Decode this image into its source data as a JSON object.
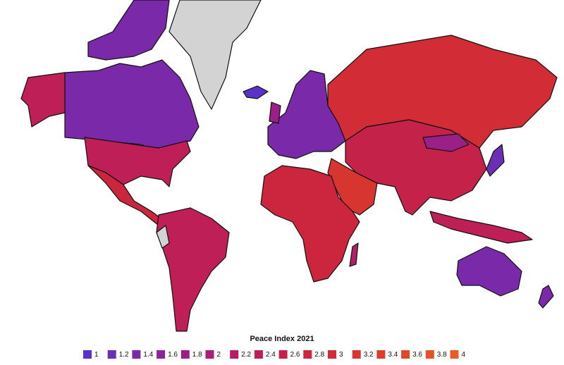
{
  "legend": {
    "title": "Peace Index 2021",
    "items": [
      {
        "value": 1,
        "color": "#5b32c8"
      },
      {
        "value": 1.2,
        "color": "#6a2fb5"
      },
      {
        "value": 1.4,
        "color": "#7a2aa8"
      },
      {
        "value": 1.6,
        "color": "#8a2598"
      },
      {
        "value": 1.8,
        "color": "#9a2088"
      },
      {
        "value": 2,
        "color": "#a81e78"
      },
      {
        "value": 2.2,
        "color": "#b41e66"
      },
      {
        "value": 2.4,
        "color": "#be1f56"
      },
      {
        "value": 2.6,
        "color": "#c52249"
      },
      {
        "value": 2.8,
        "color": "#cc263e"
      },
      {
        "value": 3,
        "color": "#d22c36"
      },
      {
        "value": 3.2,
        "color": "#d63530"
      },
      {
        "value": 3.4,
        "color": "#db3e2c"
      },
      {
        "value": 3.6,
        "color": "#df4829"
      },
      {
        "value": 3.8,
        "color": "#e35228"
      },
      {
        "value": 4,
        "color": "#e75c28"
      }
    ]
  }
}
